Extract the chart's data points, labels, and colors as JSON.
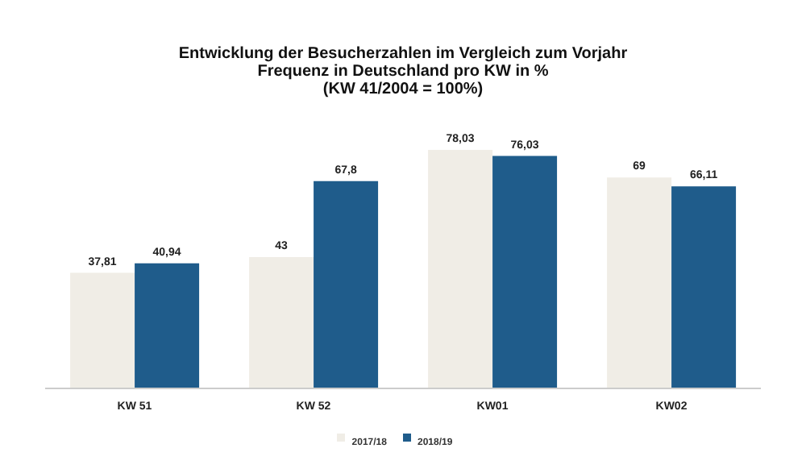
{
  "chart_data": {
    "type": "bar",
    "title": "Entwicklung der Besucherzahlen im Vergleich zum Vorjahr\nFrequenz in Deutschland pro KW in %\n(KW 41/2004 = 100%)",
    "categories": [
      "KW 51",
      "KW 52",
      "KW01",
      "KW02"
    ],
    "tick_labels": "x",
    "legend": "bottom",
    "grid": false,
    "series": [
      {
        "name": "2017/18",
        "color": "#f0ede6",
        "values": [
          37.81,
          43,
          78.03,
          69
        ],
        "value_labels": [
          "37,81",
          "43",
          "78,03",
          "69"
        ]
      },
      {
        "name": "2018/19",
        "color": "#1f5c8b",
        "values": [
          40.94,
          67.8,
          76.03,
          66.11
        ],
        "value_labels": [
          "40,94",
          "67,8",
          "76,03",
          "66,11"
        ]
      }
    ]
  }
}
